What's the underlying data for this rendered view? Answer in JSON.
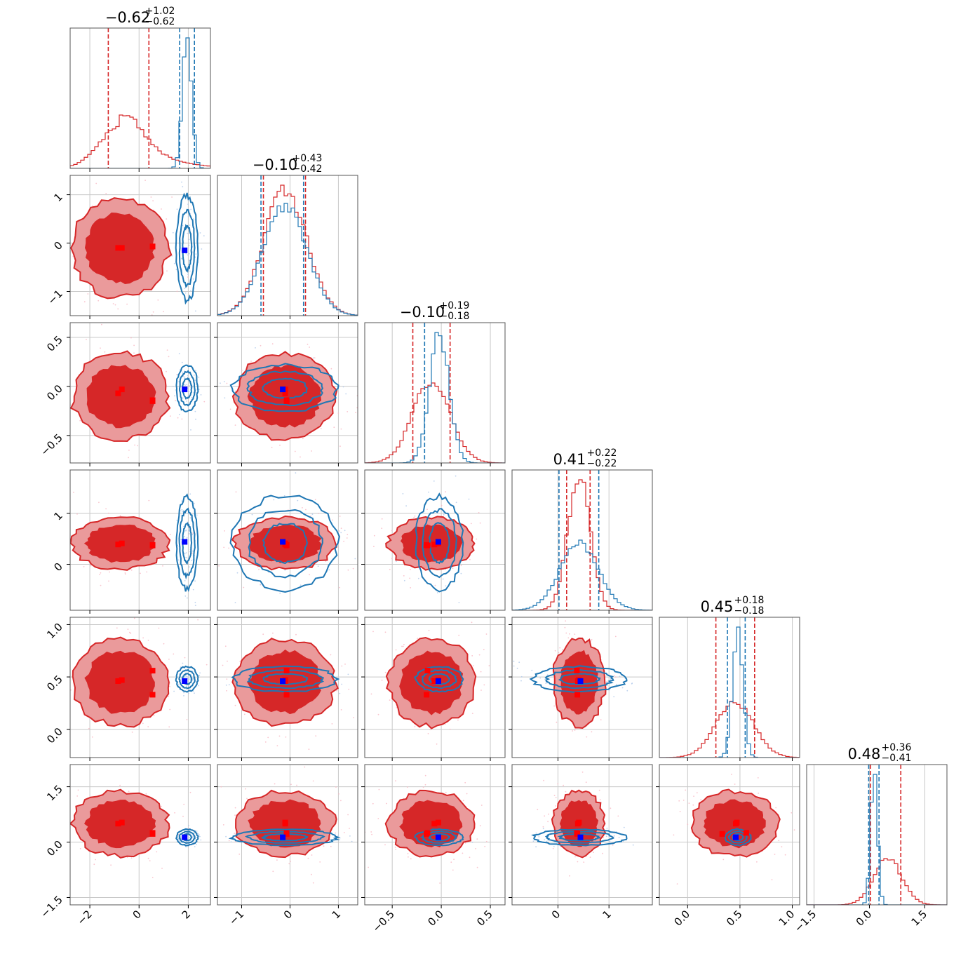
{
  "chart_data": {
    "type": "corner",
    "n_params": 6,
    "colors": {
      "red": "#d62728",
      "red_mid": "#ea9a9b",
      "blue": "#1f77b4",
      "truth_red": "#ff0000",
      "truth_blue": "#0000ff"
    },
    "grid": true,
    "titles": [
      {
        "main": "−0.62",
        "sup": "+1.02",
        "sub": "−0.62"
      },
      {
        "main": "−0.10",
        "sup": "+0.43",
        "sub": "−0.42"
      },
      {
        "main": "−0.10",
        "sup": "+0.19",
        "sub": "−0.18"
      },
      {
        "main": "0.41",
        "sup": "+0.22",
        "sub": "−0.22"
      },
      {
        "main": "0.45",
        "sup": "+0.18",
        "sub": "−0.18"
      },
      {
        "main": "0.48",
        "sup": "+0.36",
        "sub": "−0.41"
      }
    ],
    "ranges": [
      [
        -2.8,
        2.9
      ],
      [
        -1.5,
        1.4
      ],
      [
        -0.78,
        0.65
      ],
      [
        -0.9,
        1.85
      ],
      [
        -0.27,
        1.07
      ],
      [
        -1.7,
        2.1
      ]
    ],
    "ticks": [
      {
        "v": [
          -2,
          0,
          2
        ],
        "l": [
          "−2",
          "0",
          "2"
        ]
      },
      {
        "v": [
          -1,
          0,
          1
        ],
        "l": [
          "−1",
          "0",
          "1"
        ]
      },
      {
        "v": [
          -0.5,
          0.0,
          0.5
        ],
        "l": [
          "−0.5",
          "0.0",
          "0.5"
        ]
      },
      {
        "v": [
          0,
          1
        ],
        "l": [
          "0",
          "1"
        ]
      },
      {
        "v": [
          0.0,
          0.5,
          1.0
        ],
        "l": [
          "0.0",
          "0.5",
          "1.0"
        ]
      },
      {
        "v": [
          -1.5,
          0.0,
          1.5
        ],
        "l": [
          "−1.5",
          "0.0",
          "1.5"
        ]
      }
    ],
    "series": {
      "red": {
        "center": [
          -0.75,
          -0.1,
          -0.1,
          0.41,
          0.45,
          0.5
        ],
        "sigma": [
          0.85,
          0.45,
          0.19,
          0.22,
          0.18,
          0.38
        ],
        "quantiles": [
          [
            -1.25,
            0.4
          ],
          [
            -0.55,
            0.32
          ],
          [
            -0.29,
            0.09
          ],
          [
            0.17,
            0.63
          ],
          [
            0.27,
            0.64
          ],
          [
            0.03,
            0.85
          ]
        ]
      },
      "blue": {
        "center": [
          1.95,
          -0.1,
          -0.02,
          0.42,
          0.48,
          0.13
        ],
        "sigma": [
          0.18,
          0.45,
          0.1,
          0.38,
          0.05,
          0.09
        ],
        "quantiles": [
          [
            1.65,
            2.25
          ],
          [
            -0.6,
            0.28
          ],
          [
            -0.17,
            null
          ],
          [
            0.02,
            0.8
          ],
          [
            0.38,
            0.55
          ],
          [
            -0.02,
            0.26
          ]
        ]
      }
    },
    "markers": {
      "red": [
        [
          -0.85,
          -0.1,
          -0.07,
          0.39,
          0.46,
          0.5
        ],
        [
          -0.7,
          -0.1,
          -0.03,
          0.41,
          0.47,
          0.53
        ],
        [
          0.55,
          -0.07,
          -0.15,
          0.38,
          0.33,
          0.22
        ],
        [
          0.55,
          -0.07,
          -0.14,
          0.37,
          0.56,
          0.25
        ]
      ],
      "blue": [
        [
          1.85,
          -0.15,
          -0.03,
          0.44,
          0.46,
          0.13
        ]
      ]
    }
  }
}
